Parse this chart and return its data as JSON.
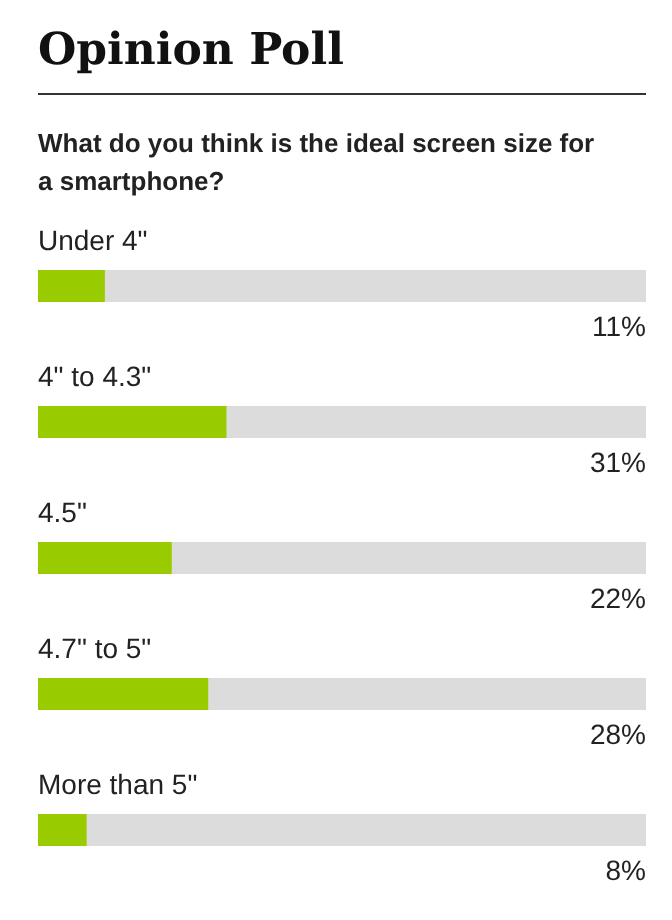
{
  "chart_data": {
    "type": "bar",
    "orientation": "horizontal",
    "title": "Opinion Poll",
    "subtitle": "What do you think is the ideal screen size for a smartphone?",
    "categories": [
      "Under 4\"",
      "4\" to 4.3\"",
      "4.5\"",
      "4.7\" to 5\"",
      "More than 5\""
    ],
    "values": [
      11,
      31,
      22,
      28,
      8
    ],
    "value_labels": [
      "11%",
      "31%",
      "22%",
      "28%",
      "8%"
    ],
    "color": "#99cc00",
    "xlim": [
      0,
      100
    ]
  }
}
